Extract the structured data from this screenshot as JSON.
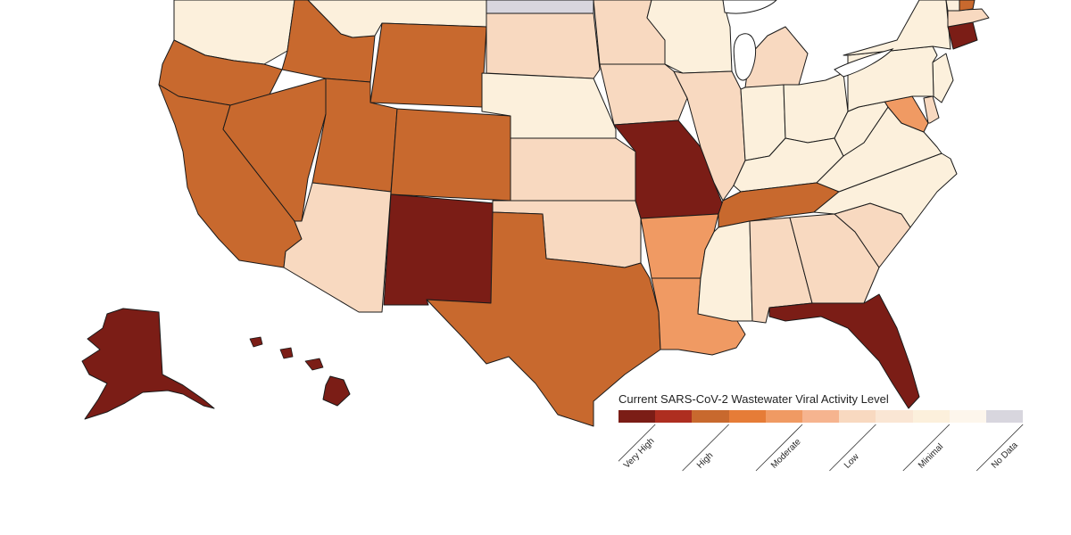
{
  "legend": {
    "title": "Current SARS-CoV-2 Wastewater Viral Activity Level",
    "levels": [
      {
        "label": "Very High",
        "color": "#7b1d16"
      },
      {
        "label": "",
        "color": "#ae2e20"
      },
      {
        "label": "High",
        "color": "#c8692e"
      },
      {
        "label": "",
        "color": "#e67c37"
      },
      {
        "label": "Moderate",
        "color": "#f09a63"
      },
      {
        "label": "",
        "color": "#f6b48f"
      },
      {
        "label": "Low",
        "color": "#f8d9c0"
      },
      {
        "label": "",
        "color": "#fae6d4"
      },
      {
        "label": "Minimal",
        "color": "#fcf0dc"
      },
      {
        "label": "",
        "color": "#fdf6ec"
      },
      {
        "label": "No Data",
        "color": "#d8d6de"
      }
    ]
  },
  "states": [
    {
      "name": "WA",
      "level": "Minimal"
    },
    {
      "name": "OR",
      "level": "High"
    },
    {
      "name": "CA",
      "level": "High"
    },
    {
      "name": "NV",
      "level": "High"
    },
    {
      "name": "ID",
      "level": "High"
    },
    {
      "name": "MT",
      "level": "Minimal"
    },
    {
      "name": "WY",
      "level": "High"
    },
    {
      "name": "UT",
      "level": "High"
    },
    {
      "name": "CO",
      "level": "High"
    },
    {
      "name": "AZ",
      "level": "Low"
    },
    {
      "name": "NM",
      "level": "Very High"
    },
    {
      "name": "ND",
      "level": "No Data"
    },
    {
      "name": "SD",
      "level": "Low"
    },
    {
      "name": "NE",
      "level": "Minimal"
    },
    {
      "name": "KS",
      "level": "Low"
    },
    {
      "name": "OK",
      "level": "Low"
    },
    {
      "name": "TX",
      "level": "High"
    },
    {
      "name": "MN",
      "level": "Low"
    },
    {
      "name": "IA",
      "level": "Low"
    },
    {
      "name": "MO",
      "level": "Very High"
    },
    {
      "name": "AR",
      "level": "Moderate"
    },
    {
      "name": "LA",
      "level": "Moderate"
    },
    {
      "name": "WI",
      "level": "Minimal"
    },
    {
      "name": "IL",
      "level": "Low"
    },
    {
      "name": "MI",
      "level": "Low"
    },
    {
      "name": "IN",
      "level": "Minimal"
    },
    {
      "name": "OH",
      "level": "Minimal"
    },
    {
      "name": "KY",
      "level": "Minimal"
    },
    {
      "name": "TN",
      "level": "High"
    },
    {
      "name": "MS",
      "level": "Minimal"
    },
    {
      "name": "AL",
      "level": "Low"
    },
    {
      "name": "GA",
      "level": "Low"
    },
    {
      "name": "FL",
      "level": "Very High"
    },
    {
      "name": "SC",
      "level": "Low"
    },
    {
      "name": "NC",
      "level": "Minimal"
    },
    {
      "name": "VA",
      "level": "Minimal"
    },
    {
      "name": "WV",
      "level": "Minimal"
    },
    {
      "name": "MD",
      "level": "Moderate"
    },
    {
      "name": "DE",
      "level": "Low"
    },
    {
      "name": "NJ",
      "level": "Minimal"
    },
    {
      "name": "PA",
      "level": "Minimal"
    },
    {
      "name": "NY",
      "level": "Minimal"
    },
    {
      "name": "CT",
      "level": "Very High"
    },
    {
      "name": "MA",
      "level": "Low"
    },
    {
      "name": "VT",
      "level": "Minimal"
    },
    {
      "name": "NH",
      "level": "High"
    },
    {
      "name": "AK",
      "level": "Very High"
    },
    {
      "name": "HI",
      "level": "Very High"
    }
  ]
}
